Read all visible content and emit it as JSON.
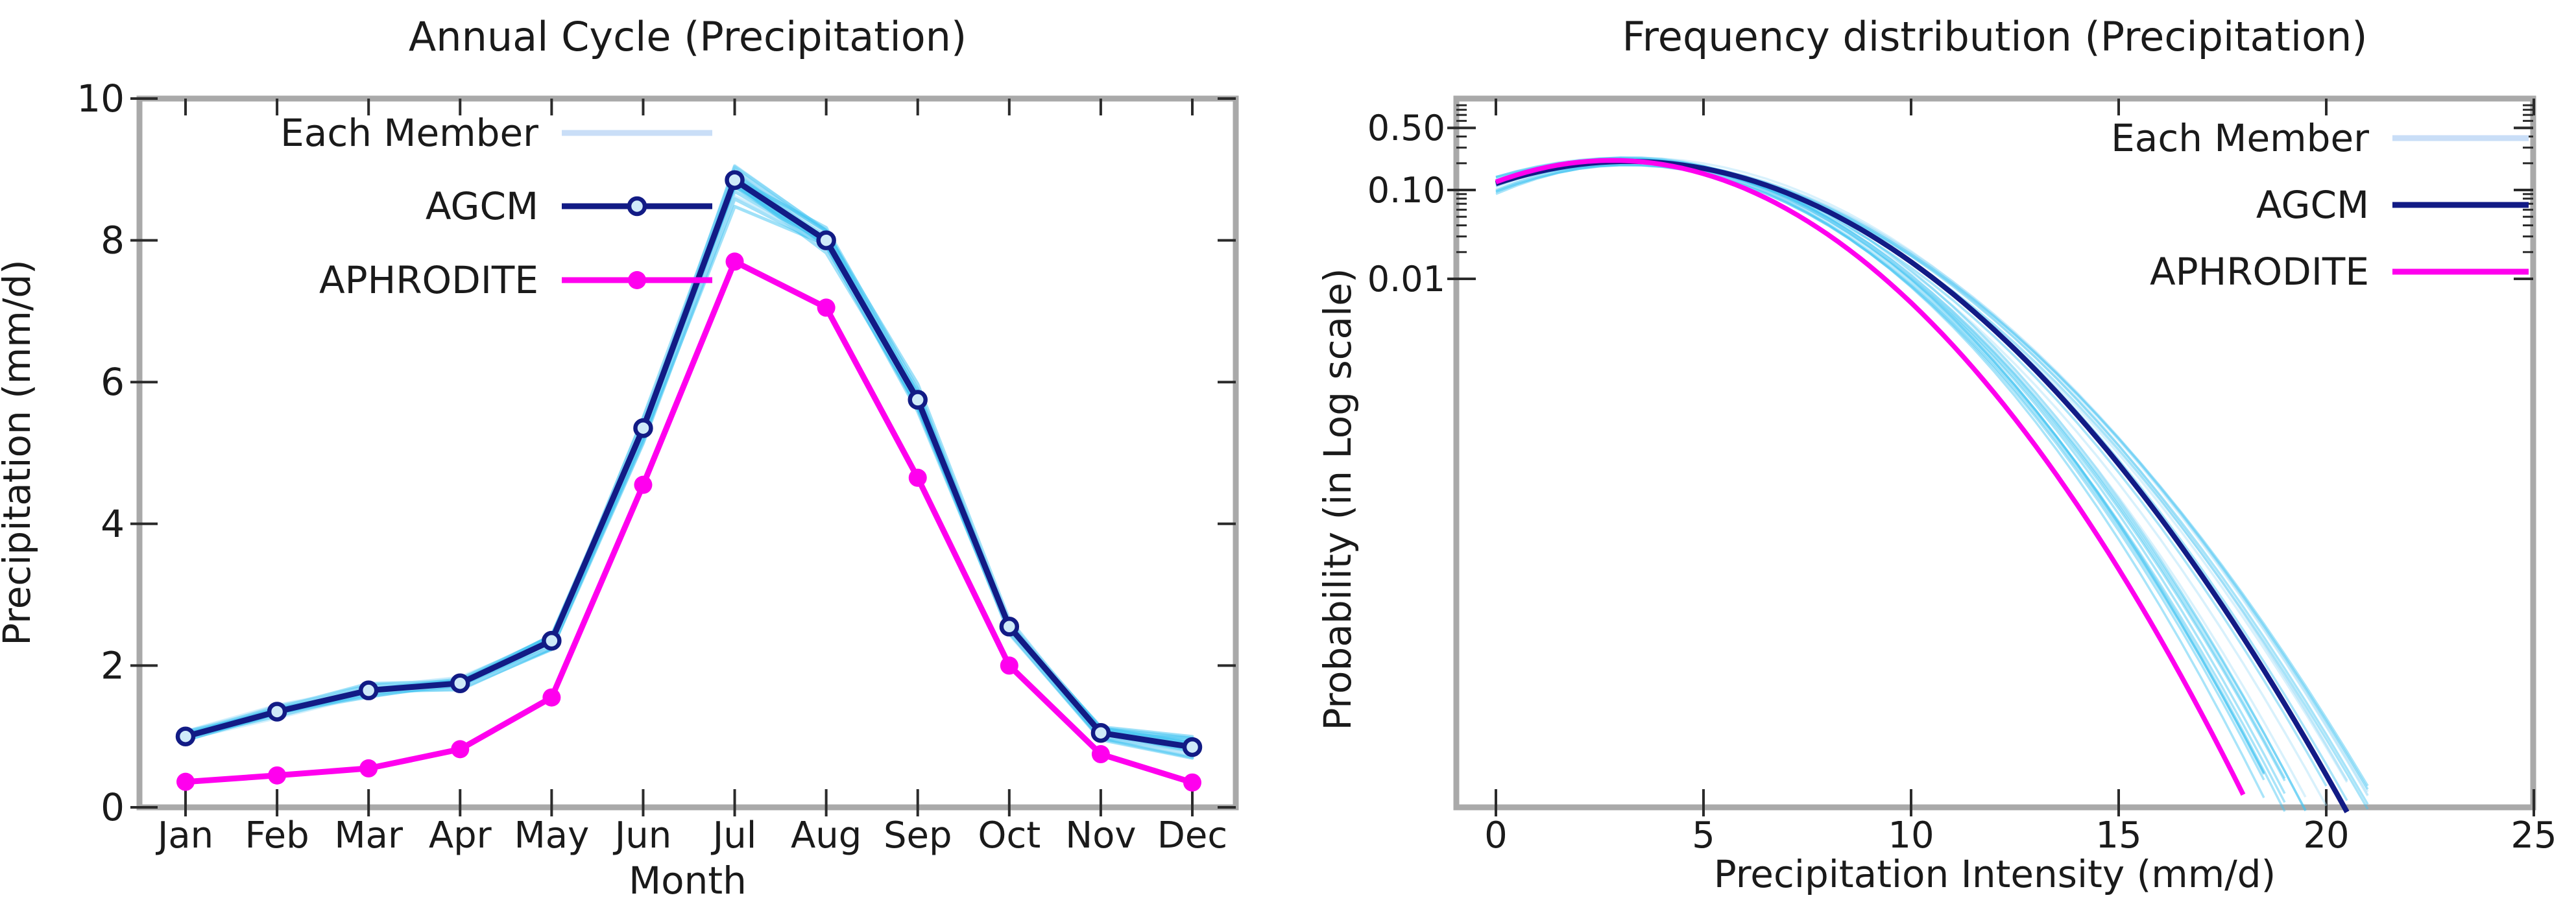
{
  "figure": {
    "background": "#ffffff",
    "colors": {
      "navy": "#121b85",
      "magenta": "#ff00ee",
      "ensemble": "#3fc3f1",
      "ensemble_light": "#a9e1f9",
      "legend_member_swatch": "#c9def7",
      "spine": "#a9a9a9",
      "tick": "#2b2b2b",
      "text": "#1a1a1a",
      "marker_open_fill": "#cfeaf9"
    }
  },
  "left_chart": {
    "title": "Annual Cycle (Precipitation)",
    "ylabel": "Precipitation (mm/d)",
    "xlabel": "Month",
    "y_ticks": [
      "0",
      "2",
      "4",
      "6",
      "8",
      "10"
    ],
    "y_tick_values": [
      0,
      2,
      4,
      6,
      8,
      10
    ],
    "x_ticks": [
      "Jan",
      "Feb",
      "Mar",
      "Apr",
      "May",
      "Jun",
      "Jul",
      "Aug",
      "Sep",
      "Oct",
      "Nov",
      "Dec"
    ],
    "legend": [
      {
        "label": "Each Member",
        "series": "members"
      },
      {
        "label": "AGCM",
        "series": "agcm"
      },
      {
        "label": "APHRODITE",
        "series": "aphrodite"
      }
    ]
  },
  "right_chart": {
    "title": "Frequency distribution (Precipitation)",
    "ylabel": "Probability (in Log scale)",
    "xlabel": "Precipitation Intensity (mm/d)",
    "y_ticks": [
      {
        "label": "0.50",
        "value": 0.5
      },
      {
        "label": "0.10",
        "value": 0.1
      },
      {
        "label": "0.01",
        "value": 0.01
      }
    ],
    "y_minor_tick_values": [
      0.2,
      0.3,
      0.4,
      0.6,
      0.7,
      0.8,
      0.9,
      0.02,
      0.03,
      0.04,
      0.05,
      0.06,
      0.07,
      0.08,
      0.09
    ],
    "x_ticks": [
      "0",
      "5",
      "10",
      "15",
      "20",
      "25"
    ],
    "x_tick_values": [
      0,
      5,
      10,
      15,
      20,
      25
    ],
    "legend": [
      {
        "label": "Each Member",
        "series": "members"
      },
      {
        "label": "AGCM",
        "series": "agcm"
      },
      {
        "label": "APHRODITE",
        "series": "aphrodite"
      }
    ]
  },
  "chart_data": [
    {
      "type": "line",
      "title": "Annual Cycle (Precipitation)",
      "xlabel": "Month",
      "ylabel": "Precipitation (mm/d)",
      "ylim": [
        0,
        10
      ],
      "grid": false,
      "legend_position": "upper-left",
      "categories": [
        "Jan",
        "Feb",
        "Mar",
        "Apr",
        "May",
        "Jun",
        "Jul",
        "Aug",
        "Sep",
        "Oct",
        "Nov",
        "Dec"
      ],
      "series": [
        {
          "name": "AGCM",
          "values": [
            1.0,
            1.35,
            1.65,
            1.75,
            2.35,
            5.35,
            8.85,
            8.0,
            5.75,
            2.55,
            1.05,
            0.85
          ]
        },
        {
          "name": "APHRODITE",
          "values": [
            0.36,
            0.45,
            0.55,
            0.82,
            1.55,
            4.55,
            7.7,
            7.05,
            4.65,
            2.0,
            0.75,
            0.35
          ]
        }
      ],
      "ensemble": {
        "name": "Each Member",
        "count": 24,
        "seed": 7,
        "sigma": [
          0.07,
          0.08,
          0.1,
          0.08,
          0.1,
          0.18,
          0.3,
          0.22,
          0.18,
          0.1,
          0.08,
          0.14
        ]
      }
    },
    {
      "type": "line",
      "title": "Frequency distribution (Precipitation)",
      "xlabel": "Precipitation Intensity (mm/d)",
      "ylabel": "Probability (in Log scale)",
      "y_scale": "log",
      "xlim": [
        0,
        25
      ],
      "ylim": [
        1e-08,
        1.05
      ],
      "grid": false,
      "legend_position": "upper-right",
      "series": [
        {
          "name": "AGCM",
          "x": [
            0,
            1,
            2,
            3,
            4,
            5,
            6,
            7,
            8,
            9,
            10,
            11,
            12,
            13,
            14,
            15,
            16,
            17,
            18,
            19,
            20,
            20.5
          ],
          "p": [
            0.118,
            0.16,
            0.194,
            0.209,
            0.202,
            0.175,
            0.135,
            0.093,
            0.0573,
            0.0315,
            0.0155,
            0.00681,
            0.00267,
            0.00094,
            0.00029,
            8.2e-05,
            2.1e-05,
            4.6e-06,
            9.2e-07,
            1.6e-07,
            2.6e-08,
            1e-08
          ],
          "fit": {
            "a": -0.678,
            "x0": 3.2,
            "k": 0.02447,
            "xend": 20.5
          }
        },
        {
          "name": "APHRODITE",
          "x": [
            0,
            1,
            2,
            3,
            4,
            5,
            6,
            7,
            8,
            9,
            10,
            11,
            12,
            13,
            14,
            15,
            16,
            17,
            18,
            18.2
          ],
          "p": [
            0.123,
            0.171,
            0.206,
            0.215,
            0.194,
            0.153,
            0.104,
            0.0614,
            0.0314,
            0.014,
            0.00539,
            0.0018,
            0.00052,
            0.00013,
            2.9e-05,
            5.4e-06,
            8.9e-07,
            1.3e-07,
            1.6e-08,
            1e-08
          ],
          "fit": {
            "a": -0.667,
            "x0": 2.8,
            "k": 0.0309,
            "xend": 18.2
          }
        }
      ],
      "ensemble": {
        "name": "Each Member",
        "count": 26,
        "seed": 11,
        "end_min": 18.6,
        "end_max": 21.4,
        "x_peak": 3.2,
        "logp_peak": -0.678,
        "peak_jitter": 0.05
      }
    }
  ]
}
